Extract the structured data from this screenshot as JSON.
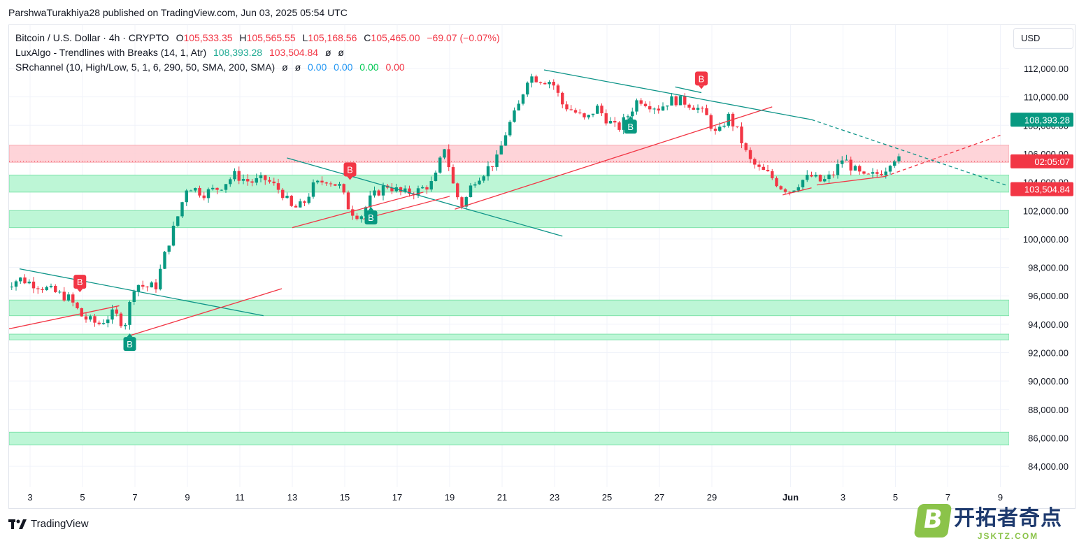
{
  "header": {
    "published_line": "ParshwaTurakhiya28 published on TradingView.com, Jun 03, 2025 05:54 UTC"
  },
  "legend": {
    "symbol": "Bitcoin / U.S. Dollar · 4h · CRYPTO",
    "ohlc": {
      "o_label": "O",
      "o": "105,533.35",
      "h_label": "H",
      "h": "105,565.55",
      "l_label": "L",
      "l": "105,168.56",
      "c_label": "C",
      "c": "105,465.00",
      "change": "−69.07 (−0.07%)"
    },
    "indicator1": {
      "name": "LuxAlgo - Trendlines with Breaks (14, 1, Atr)",
      "v1": "108,393.28",
      "v2": "103,504.84",
      "v3": "ø",
      "v4": "ø"
    },
    "indicator2": {
      "name": "SRchannel (10, High/Low, 5, 1, 6, 290, 50, SMA, 200, SMA)",
      "v1": "ø",
      "v2": "ø",
      "v3": "0.00",
      "v4": "0.00",
      "v5": "0.00",
      "v6": "0.00"
    }
  },
  "currency": "USD",
  "footer": {
    "brand": "TradingView",
    "watermark_cn": "开拓者奇点",
    "watermark_en": "JSKTZ.COM",
    "watermark_letter": "B"
  },
  "colors": {
    "up": "#089981",
    "down": "#f23645",
    "support_zone": "#b9f6d4",
    "resistance_zone": "#fecdd2",
    "down_trendline": "#0d9488",
    "up_trendline": "#f23645"
  },
  "chart_data": {
    "type": "candlestick",
    "title": "Bitcoin / U.S. Dollar · 4h · CRYPTO",
    "ylim": [
      83000,
      113500
    ],
    "y_ticks": [
      "112,000.00",
      "110,000.00",
      "108,000.00",
      "106,000.00",
      "104,000.00",
      "102,000.00",
      "100,000.00",
      "98,000.00",
      "96,000.00",
      "94,000.00",
      "92,000.00",
      "90,000.00",
      "88,000.00",
      "86,000.00",
      "84,000.00"
    ],
    "y_tick_values": [
      112000,
      110000,
      108000,
      106000,
      104000,
      102000,
      100000,
      98000,
      96000,
      94000,
      92000,
      90000,
      88000,
      86000,
      84000
    ],
    "x_ticks": [
      "3",
      "5",
      "7",
      "9",
      "11",
      "13",
      "15",
      "17",
      "19",
      "21",
      "23",
      "25",
      "27",
      "29",
      "Jun",
      "3",
      "5",
      "7",
      "9"
    ],
    "x_tick_days": [
      3,
      5,
      7,
      9,
      11,
      13,
      15,
      17,
      19,
      21,
      23,
      25,
      27,
      29,
      32,
      34,
      36,
      38,
      40
    ],
    "x_unit": "day (May 2025, continuing into June)",
    "price_labels": [
      {
        "text": "108,393.28",
        "value": 108393.28,
        "color": "#089981"
      },
      {
        "text": "02:05:07",
        "value": 105465,
        "color": "#f23645"
      },
      {
        "text": "103,504.84",
        "value": 103504.84,
        "color": "#f23645"
      }
    ],
    "zones": [
      {
        "kind": "resistance",
        "low": 105400,
        "high": 106600
      },
      {
        "kind": "support",
        "low": 103300,
        "high": 104500
      },
      {
        "kind": "support",
        "low": 100800,
        "high": 102000
      },
      {
        "kind": "support",
        "low": 94600,
        "high": 95700
      },
      {
        "kind": "support",
        "low": 92900,
        "high": 93300
      },
      {
        "kind": "support",
        "low": 85500,
        "high": 86400
      }
    ],
    "trendlines": [
      {
        "kind": "down",
        "from": [
          2.6,
          97900
        ],
        "to": [
          11.9,
          94600
        ],
        "dashed": false
      },
      {
        "kind": "up",
        "from": [
          2.0,
          93600
        ],
        "to": [
          6.4,
          95300
        ],
        "dashed": false
      },
      {
        "kind": "up",
        "from": [
          6.8,
          93200
        ],
        "to": [
          12.6,
          96500
        ],
        "dashed": false
      },
      {
        "kind": "down",
        "from": [
          12.8,
          105700
        ],
        "to": [
          23.3,
          100200
        ],
        "dashed": false
      },
      {
        "kind": "up",
        "from": [
          13.0,
          100800
        ],
        "to": [
          18.0,
          103300
        ],
        "dashed": false
      },
      {
        "kind": "up",
        "from": [
          15.7,
          101400
        ],
        "to": [
          19.0,
          103000
        ],
        "dashed": false
      },
      {
        "kind": "up",
        "from": [
          19.2,
          102100
        ],
        "to": [
          31.3,
          109300
        ],
        "dashed": false
      },
      {
        "kind": "down",
        "from": [
          22.6,
          111900
        ],
        "to": [
          32.8,
          108400
        ],
        "dashed": false
      },
      {
        "kind": "down",
        "from": [
          32.8,
          108400
        ],
        "to": [
          40.2,
          103800
        ],
        "dashed": true
      },
      {
        "kind": "down",
        "from": [
          27.6,
          110700
        ],
        "to": [
          28.6,
          110300
        ],
        "dashed": false
      },
      {
        "kind": "up",
        "from": [
          31.7,
          103100
        ],
        "to": [
          32.8,
          103600
        ],
        "dashed": false
      },
      {
        "kind": "up",
        "from": [
          33.0,
          103800
        ],
        "to": [
          35.6,
          104400
        ],
        "dashed": false
      },
      {
        "kind": "up",
        "from": [
          35.6,
          104400
        ],
        "to": [
          40.0,
          107300
        ],
        "dashed": true
      }
    ],
    "signals": [
      {
        "label": "B",
        "day": 4.9,
        "price": 96400,
        "color": "#f23645",
        "position": "above"
      },
      {
        "label": "B",
        "day": 6.8,
        "price": 93300,
        "color": "#089981",
        "position": "below"
      },
      {
        "label": "B",
        "day": 15.2,
        "price": 104300,
        "color": "#f23645",
        "position": "above"
      },
      {
        "label": "B",
        "day": 16.0,
        "price": 102200,
        "color": "#089981",
        "position": "below"
      },
      {
        "label": "B",
        "day": 25.9,
        "price": 108600,
        "color": "#089981",
        "position": "below"
      },
      {
        "label": "B",
        "day": 28.6,
        "price": 110700,
        "color": "#f23645",
        "position": "above"
      }
    ],
    "series_close_keypoints": [
      [
        1.8,
        96500
      ],
      [
        2.6,
        97200
      ],
      [
        3.5,
        96600
      ],
      [
        4.5,
        95800
      ],
      [
        5.0,
        94500
      ],
      [
        5.6,
        94000
      ],
      [
        6.2,
        94800
      ],
      [
        6.6,
        93900
      ],
      [
        7.0,
        96900
      ],
      [
        7.4,
        96600
      ],
      [
        7.8,
        96700
      ],
      [
        8.2,
        99300
      ],
      [
        8.6,
        101400
      ],
      [
        9.0,
        103800
      ],
      [
        9.6,
        103200
      ],
      [
        10.2,
        103600
      ],
      [
        10.8,
        104500
      ],
      [
        11.4,
        104000
      ],
      [
        12.0,
        104200
      ],
      [
        12.6,
        103300
      ],
      [
        13.0,
        102100
      ],
      [
        13.4,
        102400
      ],
      [
        13.8,
        103700
      ],
      [
        14.3,
        104200
      ],
      [
        14.8,
        103700
      ],
      [
        15.2,
        102000
      ],
      [
        15.6,
        101600
      ],
      [
        16.0,
        102900
      ],
      [
        16.6,
        103800
      ],
      [
        17.2,
        103200
      ],
      [
        17.8,
        103400
      ],
      [
        18.4,
        104000
      ],
      [
        18.8,
        106500
      ],
      [
        19.2,
        103300
      ],
      [
        19.5,
        102300
      ],
      [
        19.9,
        104100
      ],
      [
        20.3,
        104700
      ],
      [
        20.8,
        105600
      ],
      [
        21.2,
        107800
      ],
      [
        21.6,
        109200
      ],
      [
        22.0,
        111500
      ],
      [
        22.5,
        111200
      ],
      [
        22.9,
        111100
      ],
      [
        23.3,
        109500
      ],
      [
        23.8,
        108900
      ],
      [
        24.2,
        108300
      ],
      [
        24.6,
        109300
      ],
      [
        25.0,
        108400
      ],
      [
        25.4,
        107700
      ],
      [
        25.8,
        108700
      ],
      [
        26.2,
        109900
      ],
      [
        26.6,
        109500
      ],
      [
        27.0,
        109200
      ],
      [
        27.4,
        109800
      ],
      [
        27.9,
        109700
      ],
      [
        28.4,
        109300
      ],
      [
        28.8,
        108600
      ],
      [
        29.2,
        107200
      ],
      [
        29.6,
        108700
      ],
      [
        30.0,
        107500
      ],
      [
        30.4,
        105600
      ],
      [
        30.8,
        104900
      ],
      [
        31.2,
        104500
      ],
      [
        31.6,
        103700
      ],
      [
        32.0,
        103400
      ],
      [
        32.4,
        104100
      ],
      [
        32.8,
        104400
      ],
      [
        33.2,
        104000
      ],
      [
        33.6,
        104500
      ],
      [
        34.0,
        105700
      ],
      [
        34.4,
        104900
      ],
      [
        34.8,
        104300
      ],
      [
        35.2,
        104500
      ],
      [
        35.6,
        104900
      ],
      [
        35.9,
        105800
      ],
      [
        36.2,
        105465
      ]
    ]
  }
}
